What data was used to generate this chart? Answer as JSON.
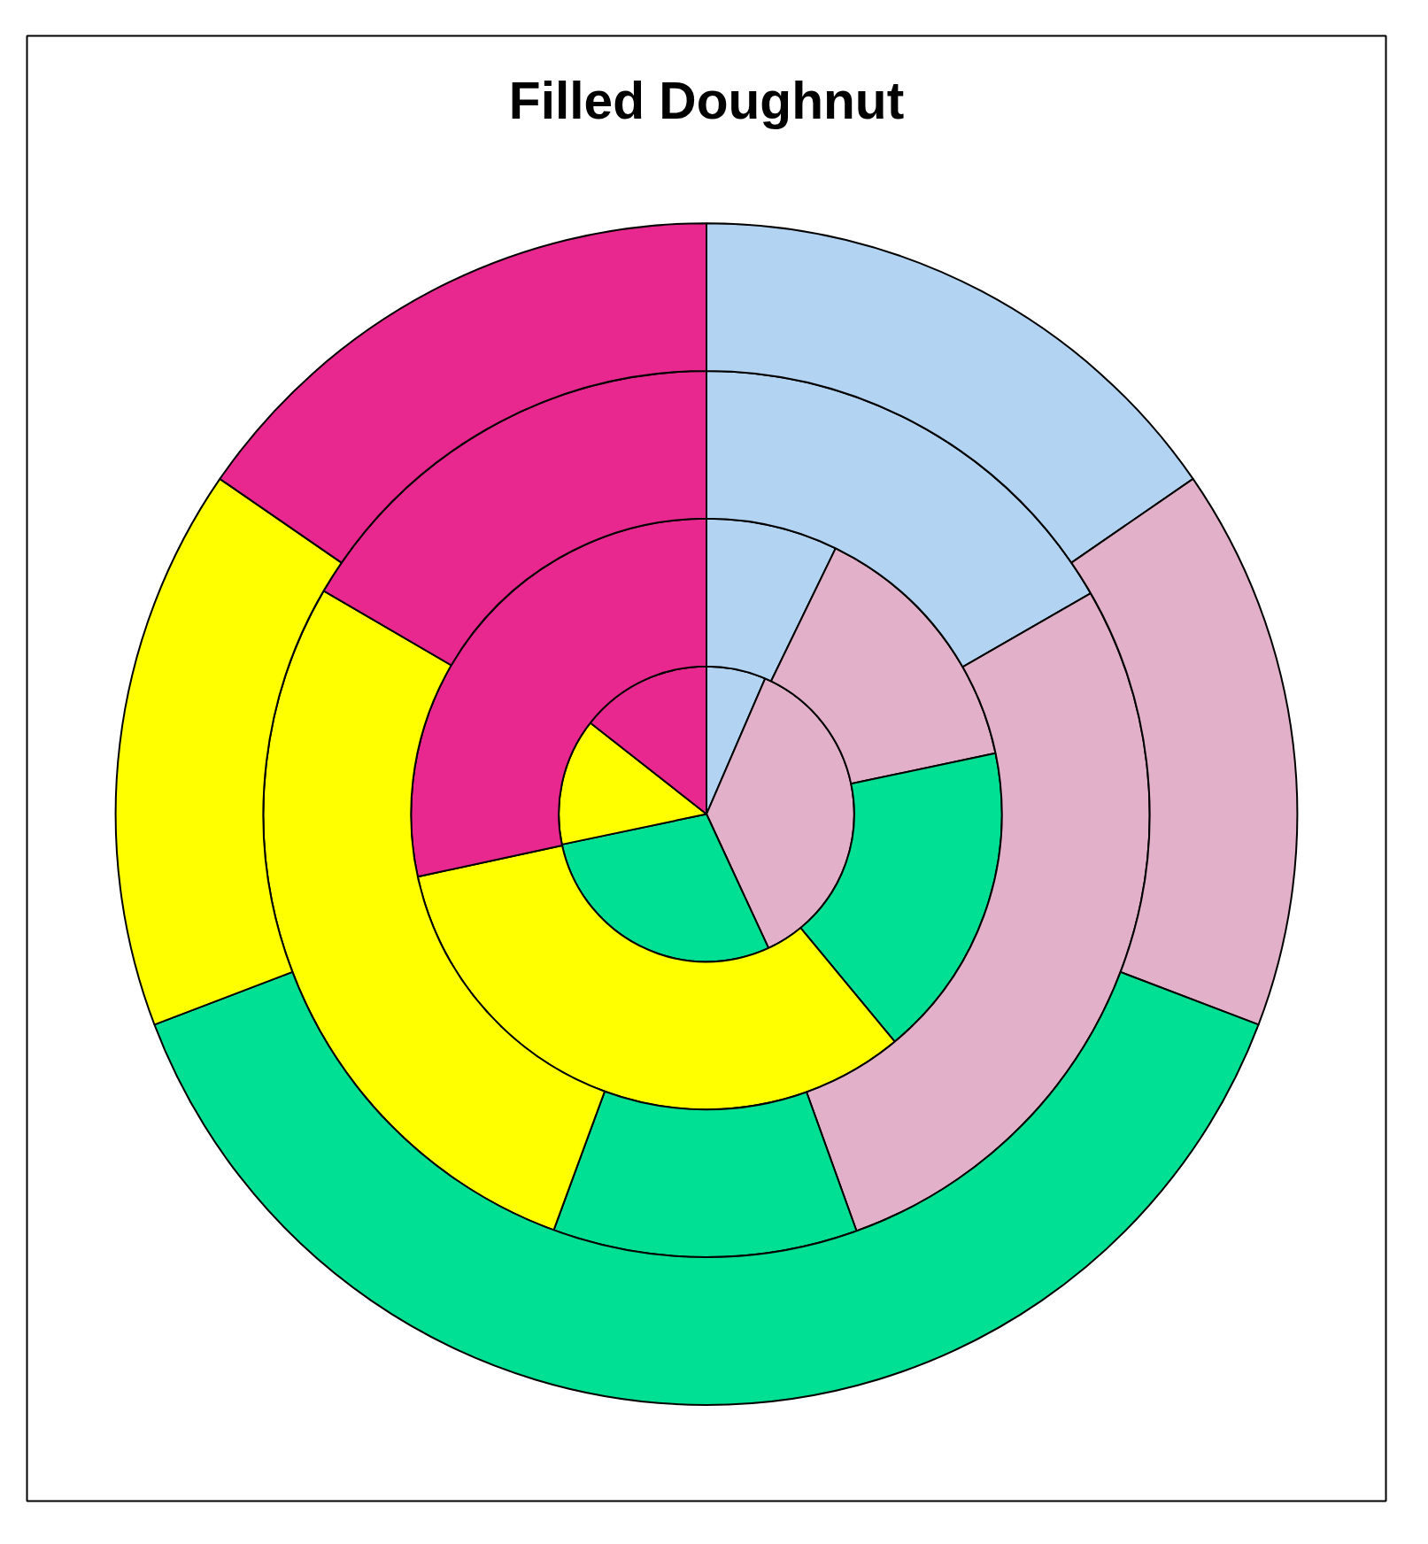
{
  "chart_data": {
    "type": "donut",
    "title": "Filled Doughnut",
    "categories": [
      null,
      null,
      null,
      null,
      null
    ],
    "colors": [
      "#b2d3f2",
      "#e3b0ca",
      "#00e094",
      "#ffff00",
      "#e8288f"
    ],
    "series": [
      {
        "values": [
          6.5,
          36.6,
          28.6,
          13.9,
          14.4
        ]
      },
      {
        "values": [
          7.2,
          14.5,
          17.3,
          32.6,
          28.4
        ]
      },
      {
        "values": [
          16.7,
          27.8,
          11.1,
          27.8,
          16.6
        ]
      },
      {
        "values": [
          15.4,
          15.4,
          38.4,
          15.4,
          15.4
        ]
      }
    ]
  }
}
